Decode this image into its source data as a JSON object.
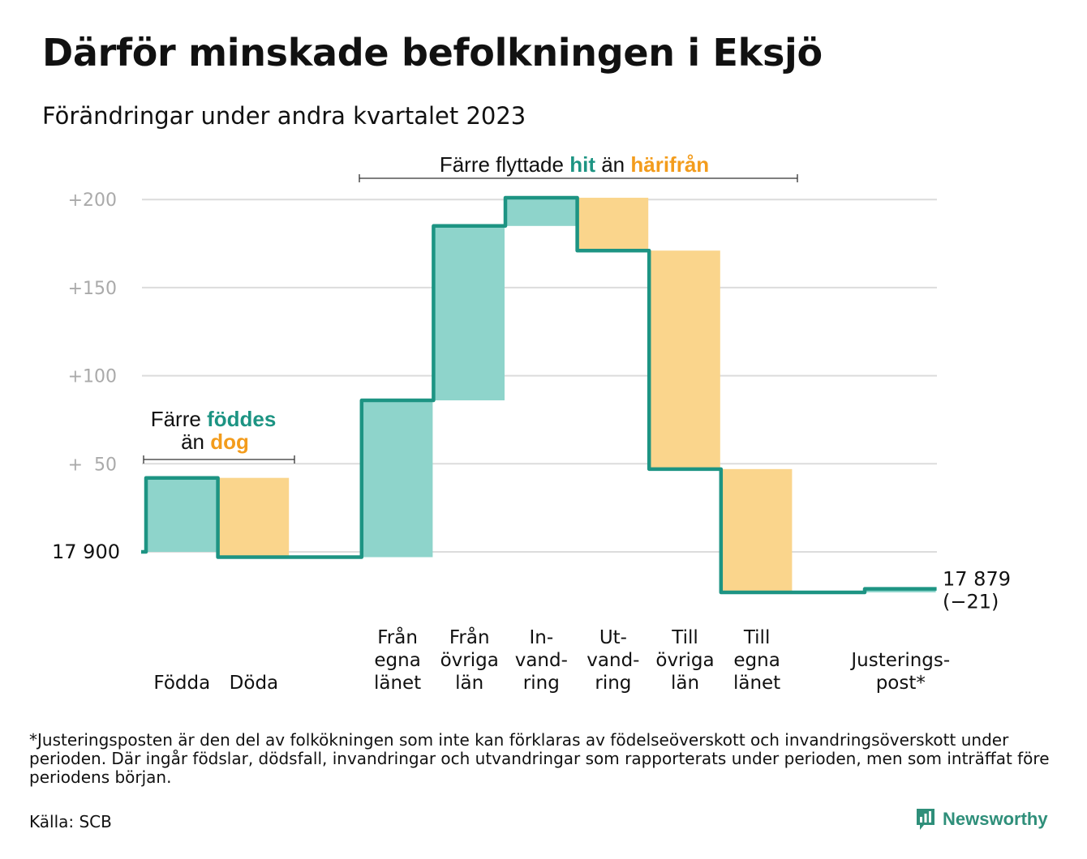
{
  "title": "Därför minskade befolkningen i Eksjö",
  "subtitle": "Förändringar under andra kvartalet 2023",
  "colors": {
    "increase_fill": "#8ed4cb",
    "decrease_fill": "#fad58c",
    "step_line": "#1d9483",
    "accent_teal": "#1d9483",
    "accent_orange": "#f39c1c",
    "grid": "#dcdcdc",
    "tick_text": "#aaaaaa",
    "brand": "#2f8f7a"
  },
  "annotations": {
    "births": {
      "line1_prefix": "Färre",
      "line1_highlight": "föddes",
      "line2_prefix": "än",
      "line2_highlight": "dog"
    },
    "migration": {
      "prefix": "Färre flyttade",
      "highlight1": "hit",
      "middle": "än",
      "highlight2": "härifrån"
    }
  },
  "chart_data": {
    "type": "waterfall",
    "start_value": 17900,
    "start_label": "17 900",
    "end_value": 17879,
    "end_label": "17 879",
    "end_change_label": "(−21)",
    "y_ticks": [
      {
        "value": 50,
        "label": "+  50"
      },
      {
        "value": 100,
        "label": "+100"
      },
      {
        "value": 150,
        "label": "+150"
      },
      {
        "value": 200,
        "label": "+200"
      }
    ],
    "ylim": [
      -30,
      200
    ],
    "steps": [
      {
        "label": [
          "Födda"
        ],
        "change": 42
      },
      {
        "label": [
          "Döda"
        ],
        "change": -45
      },
      {
        "label": [
          ""
        ],
        "change": 0
      },
      {
        "label": [
          "Från",
          "egna",
          "länet"
        ],
        "change": 89
      },
      {
        "label": [
          "Från",
          "övriga",
          "län"
        ],
        "change": 99
      },
      {
        "label": [
          "In-",
          "vand-",
          "ring"
        ],
        "change": 16
      },
      {
        "label": [
          "Ut-",
          "vand-",
          "ring"
        ],
        "change": -30
      },
      {
        "label": [
          "Till",
          "övriga",
          "län"
        ],
        "change": -124
      },
      {
        "label": [
          "Till",
          "egna",
          "länet"
        ],
        "change": -70
      },
      {
        "label": [
          ""
        ],
        "change": 0
      },
      {
        "label": [
          "Justerings-",
          "post*"
        ],
        "change": 2
      }
    ]
  },
  "footnote": "*Justeringsposten är den del av folkökningen som inte kan förklaras av födelseöverskott och invandringsöverskott under perioden. Där ingår födslar, dödsfall, invandringar och utvandringar som rapporterats under perioden, men som inträffat före periodens början.",
  "source": "Källa: SCB",
  "brand": {
    "name": "Newsworthy",
    "icon": "bar-chart-speech-bubble-icon"
  }
}
